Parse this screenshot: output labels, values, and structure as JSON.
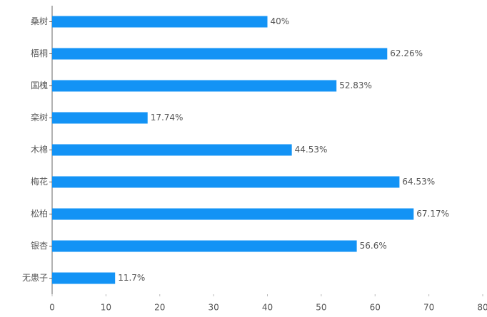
{
  "chart_data": {
    "type": "bar",
    "orientation": "horizontal",
    "categories": [
      "桑树",
      "梧桐",
      "国槐",
      "栾树",
      "木棉",
      "梅花",
      "松柏",
      "银杏",
      "无患子"
    ],
    "values": [
      40,
      62.26,
      52.83,
      17.74,
      44.53,
      64.53,
      67.17,
      56.6,
      11.7
    ],
    "value_labels": [
      "40%",
      "62.26%",
      "52.83%",
      "17.74%",
      "44.53%",
      "64.53%",
      "67.17%",
      "56.6%",
      "11.7%"
    ],
    "color": "#1393f5",
    "xlim": [
      0,
      80
    ],
    "xticks": [
      0,
      10,
      20,
      30,
      40,
      50,
      60,
      70,
      80
    ]
  }
}
